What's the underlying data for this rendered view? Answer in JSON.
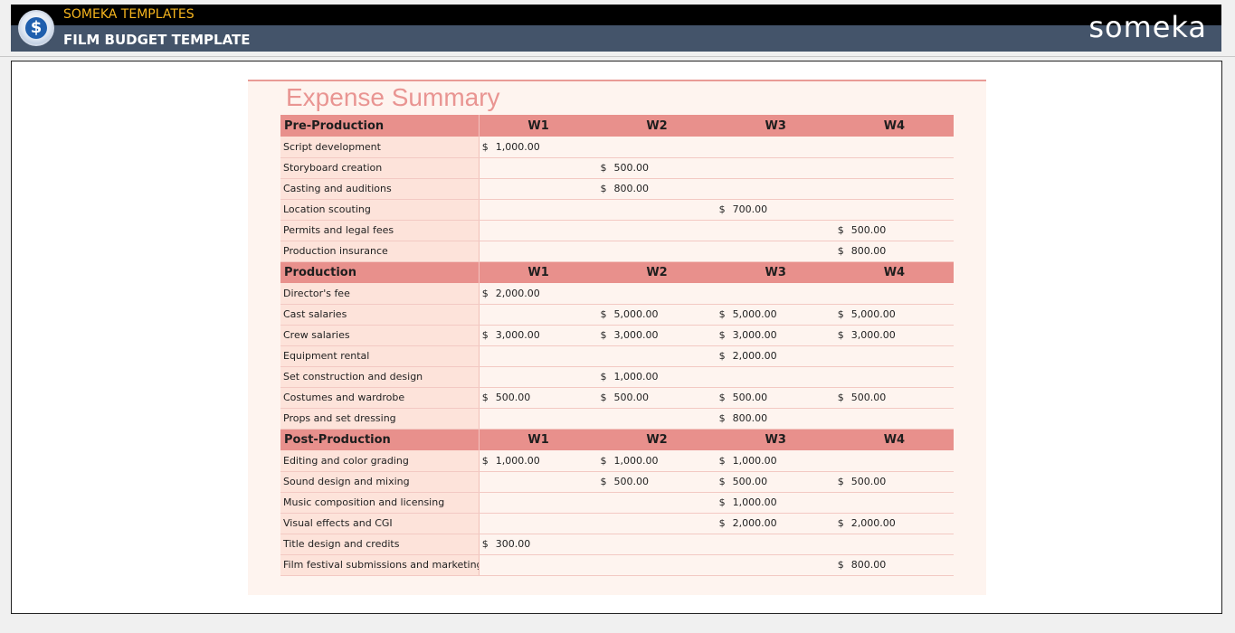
{
  "header": {
    "brand": "SOMEKA TEMPLATES",
    "title": "FILM BUDGET TEMPLATE",
    "wordmark": "someka",
    "logo_icon": "dollar-coin-icon",
    "colors": {
      "top_bar": "#000000",
      "title_bar": "#44546a",
      "brand_text": "#f5b41e",
      "accent": "#e8908c"
    }
  },
  "summary": {
    "title": "Expense Summary",
    "currency": "$",
    "sections": [
      {
        "name": "Pre-Production",
        "weeks": [
          "W1",
          "W2",
          "W3",
          "W4"
        ],
        "rows": [
          {
            "item": "Script development",
            "values": [
              "1,000.00",
              "",
              "",
              ""
            ]
          },
          {
            "item": "Storyboard creation",
            "values": [
              "",
              "500.00",
              "",
              ""
            ]
          },
          {
            "item": "Casting and auditions",
            "values": [
              "",
              "800.00",
              "",
              ""
            ]
          },
          {
            "item": "Location scouting",
            "values": [
              "",
              "",
              "700.00",
              ""
            ]
          },
          {
            "item": "Permits and legal fees",
            "values": [
              "",
              "",
              "",
              "500.00"
            ]
          },
          {
            "item": "Production insurance",
            "values": [
              "",
              "",
              "",
              "800.00"
            ]
          }
        ]
      },
      {
        "name": "Production",
        "weeks": [
          "W1",
          "W2",
          "W3",
          "W4"
        ],
        "rows": [
          {
            "item": "Director's fee",
            "values": [
              "2,000.00",
              "",
              "",
              ""
            ]
          },
          {
            "item": "Cast salaries",
            "values": [
              "",
              "5,000.00",
              "5,000.00",
              "5,000.00"
            ]
          },
          {
            "item": "Crew salaries",
            "values": [
              "3,000.00",
              "3,000.00",
              "3,000.00",
              "3,000.00"
            ]
          },
          {
            "item": "Equipment rental",
            "values": [
              "",
              "",
              "2,000.00",
              ""
            ]
          },
          {
            "item": "Set construction and design",
            "values": [
              "",
              "1,000.00",
              "",
              ""
            ]
          },
          {
            "item": "Costumes and wardrobe",
            "values": [
              "500.00",
              "500.00",
              "500.00",
              "500.00"
            ]
          },
          {
            "item": "Props and set dressing",
            "values": [
              "",
              "",
              "800.00",
              ""
            ]
          }
        ]
      },
      {
        "name": "Post-Production",
        "weeks": [
          "W1",
          "W2",
          "W3",
          "W4"
        ],
        "rows": [
          {
            "item": "Editing and color grading",
            "values": [
              "1,000.00",
              "1,000.00",
              "1,000.00",
              ""
            ]
          },
          {
            "item": "Sound design and mixing",
            "values": [
              "",
              "500.00",
              "500.00",
              "500.00"
            ]
          },
          {
            "item": "Music composition and licensing",
            "values": [
              "",
              "",
              "1,000.00",
              ""
            ]
          },
          {
            "item": "Visual effects and CGI",
            "values": [
              "",
              "",
              "2,000.00",
              "2,000.00"
            ]
          },
          {
            "item": "Title design and credits",
            "values": [
              "300.00",
              "",
              "",
              ""
            ]
          },
          {
            "item": "Film festival submissions and marketing",
            "values": [
              "",
              "",
              "",
              "800.00"
            ]
          }
        ]
      }
    ]
  }
}
